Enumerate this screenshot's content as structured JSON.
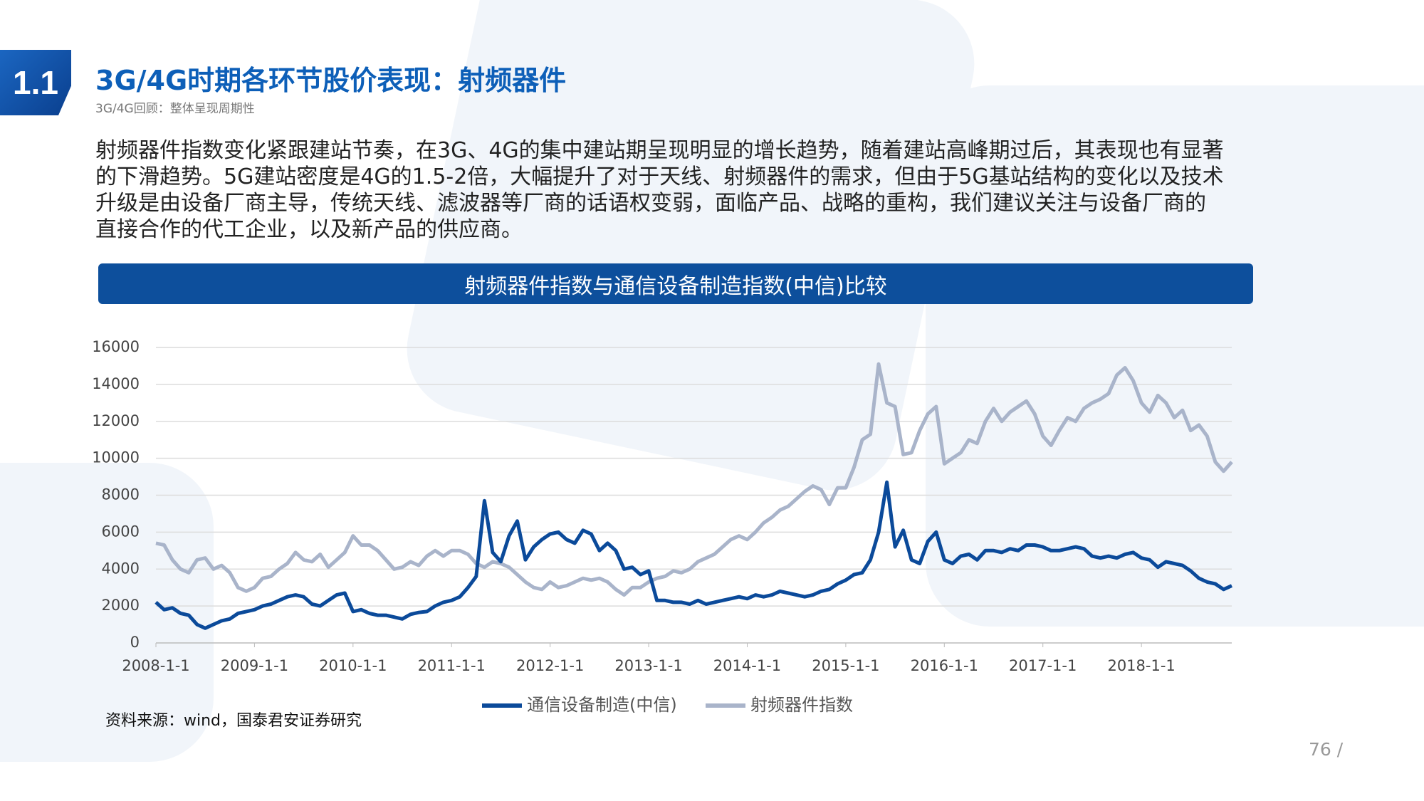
{
  "slide": {
    "section": "1.1",
    "title": "3G/4G时期各环节股价表现：射频器件",
    "subtitle": "3G/4G回顾：整体呈现周期性",
    "body_lines": [
      "射频器件指数变化紧跟建站节奏，在3G、4G的集中建站期呈现明显的增长趋势，随着建站高峰期过后，其表现也有显著",
      "的下滑趋势。5G建站密度是4G的1.5-2倍，大幅提升了对于天线、射频器件的需求，但由于5G基站结构的变化以及技术",
      "升级是由设备厂商主导，传统天线、滤波器等厂商的话语权变弱，面临产品、战略的重构，我们建议关注与设备厂商的",
      "直接合作的代工企业，以及新产品的供应商。"
    ],
    "source": "资料来源：wind，国泰君安证券研究",
    "page": "76 /"
  },
  "chart_data": {
    "type": "line",
    "title": "射频器件指数与通信设备制造指数(中信)比较",
    "x": [
      "2008-1-1",
      "2008-2-1",
      "2008-3-1",
      "2008-4-1",
      "2008-5-1",
      "2008-6-1",
      "2008-7-1",
      "2008-8-1",
      "2008-9-1",
      "2008-10-1",
      "2008-11-1",
      "2008-12-1",
      "2009-1-1",
      "2009-2-1",
      "2009-3-1",
      "2009-4-1",
      "2009-5-1",
      "2009-6-1",
      "2009-7-1",
      "2009-8-1",
      "2009-9-1",
      "2009-10-1",
      "2009-11-1",
      "2009-12-1",
      "2010-1-1",
      "2010-2-1",
      "2010-3-1",
      "2010-4-1",
      "2010-5-1",
      "2010-6-1",
      "2010-7-1",
      "2010-8-1",
      "2010-9-1",
      "2010-10-1",
      "2010-11-1",
      "2010-12-1",
      "2011-1-1",
      "2011-2-1",
      "2011-3-1",
      "2011-4-1",
      "2011-5-1",
      "2011-6-1",
      "2011-7-1",
      "2011-8-1",
      "2011-9-1",
      "2011-10-1",
      "2011-11-1",
      "2011-12-1",
      "2012-1-1",
      "2012-2-1",
      "2012-3-1",
      "2012-4-1",
      "2012-5-1",
      "2012-6-1",
      "2012-7-1",
      "2012-8-1",
      "2012-9-1",
      "2012-10-1",
      "2012-11-1",
      "2012-12-1",
      "2013-1-1",
      "2013-2-1",
      "2013-3-1",
      "2013-4-1",
      "2013-5-1",
      "2013-6-1",
      "2013-7-1",
      "2013-8-1",
      "2013-9-1",
      "2013-10-1",
      "2013-11-1",
      "2013-12-1",
      "2014-1-1",
      "2014-2-1",
      "2014-3-1",
      "2014-4-1",
      "2014-5-1",
      "2014-6-1",
      "2014-7-1",
      "2014-8-1",
      "2014-9-1",
      "2014-10-1",
      "2014-11-1",
      "2014-12-1",
      "2015-1-1",
      "2015-2-1",
      "2015-3-1",
      "2015-4-1",
      "2015-5-1",
      "2015-6-1",
      "2015-7-1",
      "2015-8-1",
      "2015-9-1",
      "2015-10-1",
      "2015-11-1",
      "2015-12-1",
      "2016-1-1",
      "2016-2-1",
      "2016-3-1",
      "2016-4-1",
      "2016-5-1",
      "2016-6-1",
      "2016-7-1",
      "2016-8-1",
      "2016-9-1",
      "2016-10-1",
      "2016-11-1",
      "2016-12-1",
      "2017-1-1",
      "2017-2-1",
      "2017-3-1",
      "2017-4-1",
      "2017-5-1",
      "2017-6-1",
      "2017-7-1",
      "2017-8-1",
      "2017-9-1",
      "2017-10-1",
      "2017-11-1",
      "2017-12-1",
      "2018-1-1",
      "2018-2-1",
      "2018-3-1",
      "2018-4-1",
      "2018-5-1",
      "2018-6-1",
      "2018-7-1",
      "2018-8-1",
      "2018-9-1",
      "2018-10-1",
      "2018-11-1",
      "2018-12-1"
    ],
    "series": [
      {
        "name": "通信设备制造(中信)",
        "color": "#0b4a9a",
        "values": [
          2200,
          1800,
          1900,
          1600,
          1500,
          1000,
          800,
          1000,
          1200,
          1300,
          1600,
          1700,
          1800,
          2000,
          2100,
          2300,
          2500,
          2600,
          2500,
          2100,
          2000,
          2300,
          2600,
          2700,
          1700,
          1800,
          1600,
          1500,
          1500,
          1400,
          1300,
          1550,
          1650,
          1700,
          2000,
          2200,
          2300,
          2500,
          3000,
          3600,
          7700,
          4900,
          4400,
          5800,
          6600,
          4500,
          5200,
          5600,
          5900,
          6000,
          5600,
          5400,
          6100,
          5900,
          5000,
          5400,
          5000,
          4000,
          4100,
          3700,
          3900,
          2300,
          2300,
          2200,
          2200,
          2100,
          2300,
          2100,
          2200,
          2300,
          2400,
          2500,
          2400,
          2600,
          2500,
          2600,
          2800,
          2700,
          2600,
          2500,
          2600,
          2800,
          2900,
          3200,
          3400,
          3700,
          3800,
          4500,
          6000,
          8700,
          5200,
          6100,
          4500,
          4300,
          5500,
          6000,
          4500,
          4300,
          4700,
          4800,
          4500,
          5000,
          5000,
          4900,
          5100,
          5000,
          5300,
          5300,
          5200,
          5000,
          5000,
          5100,
          5200,
          5100,
          4700,
          4600,
          4700,
          4600,
          4800,
          4900,
          4600,
          4500,
          4100,
          4400,
          4300,
          4200,
          3900,
          3500,
          3300,
          3200,
          2900,
          3100
        ]
      },
      {
        "name": "射频器件指数",
        "color": "#a9b4ca",
        "values": [
          5400,
          5300,
          4500,
          4000,
          3800,
          4500,
          4600,
          4000,
          4200,
          3800,
          3000,
          2800,
          3000,
          3500,
          3600,
          4000,
          4300,
          4900,
          4500,
          4400,
          4800,
          4100,
          4500,
          4900,
          5800,
          5300,
          5300,
          5000,
          4500,
          4000,
          4100,
          4400,
          4200,
          4700,
          5000,
          4700,
          5000,
          5000,
          4800,
          4300,
          4100,
          4400,
          4300,
          4100,
          3700,
          3300,
          3000,
          2900,
          3300,
          3000,
          3100,
          3300,
          3500,
          3400,
          3500,
          3300,
          2900,
          2600,
          3000,
          3000,
          3300,
          3500,
          3600,
          3900,
          3800,
          4000,
          4400,
          4600,
          4800,
          5200,
          5600,
          5800,
          5600,
          6000,
          6500,
          6800,
          7200,
          7400,
          7800,
          8200,
          8500,
          8300,
          7500,
          8400,
          8400,
          9500,
          11000,
          11300,
          15100,
          13000,
          12800,
          10200,
          10300,
          11500,
          12400,
          12800,
          9700,
          10000,
          10300,
          11000,
          10800,
          12000,
          12700,
          12000,
          12500,
          12800,
          13100,
          12400,
          11200,
          10700,
          11500,
          12200,
          12000,
          12700,
          13000,
          13200,
          13500,
          14500,
          14900,
          14200,
          13000,
          12500,
          13400,
          13000,
          12200,
          12600,
          11500,
          11800,
          11200,
          9800,
          9300,
          9800
        ]
      }
    ],
    "xlim": [
      "2008-1-1",
      "2018-12-1"
    ],
    "xticks": [
      "2008-1-1",
      "2009-1-1",
      "2010-1-1",
      "2011-1-1",
      "2012-1-1",
      "2013-1-1",
      "2014-1-1",
      "2015-1-1",
      "2016-1-1",
      "2017-1-1",
      "2018-1-1"
    ],
    "ylim": [
      0,
      16000
    ],
    "yticks": [
      0,
      2000,
      4000,
      6000,
      8000,
      10000,
      12000,
      14000,
      16000
    ],
    "grid": true,
    "legend": "bottom"
  }
}
